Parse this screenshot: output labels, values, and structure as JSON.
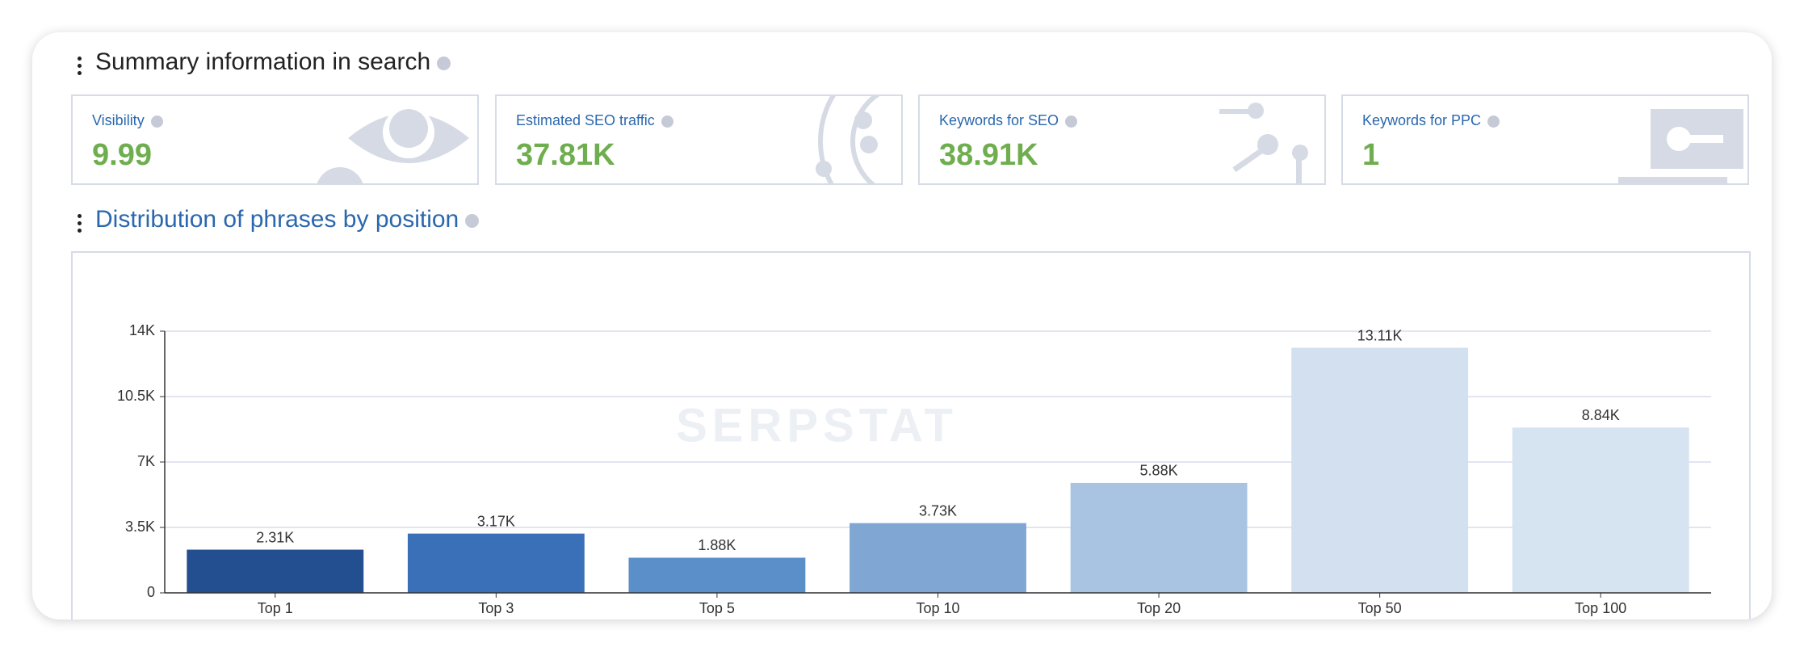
{
  "summary": {
    "title": "Summary information in search",
    "cards": [
      {
        "label": "Visibility",
        "value": "9.99"
      },
      {
        "label": "Estimated SEO traffic",
        "value": "37.81K"
      },
      {
        "label": "Keywords for SEO",
        "value": "38.91K"
      },
      {
        "label": "Keywords for PPC",
        "value": "1"
      }
    ]
  },
  "chart_data": {
    "type": "bar",
    "title": "Distribution of phrases by position",
    "watermark": "SERPSTAT",
    "categories": [
      "Top 1",
      "Top 3",
      "Top 5",
      "Top 10",
      "Top 20",
      "Top 50",
      "Top 100"
    ],
    "values": [
      2310,
      3170,
      1880,
      3730,
      5880,
      13110,
      8840
    ],
    "value_labels": [
      "2.31K",
      "3.17K",
      "1.88K",
      "3.73K",
      "5.88K",
      "13.11K",
      "8.84K"
    ],
    "colors": [
      "#234e8f",
      "#3a70b8",
      "#5b8fca",
      "#80a6d3",
      "#a9c3e3",
      "#d2e0f0",
      "#d6e3f1"
    ],
    "ylim": [
      0,
      14000
    ],
    "yticks": [
      0,
      {
        "value": 3500,
        "label": "3.5K"
      },
      {
        "value": 7000,
        "label": "7K"
      },
      {
        "value": 10500,
        "label": "10.5K"
      },
      {
        "value": 14000,
        "label": "14K"
      }
    ],
    "grid": true
  }
}
